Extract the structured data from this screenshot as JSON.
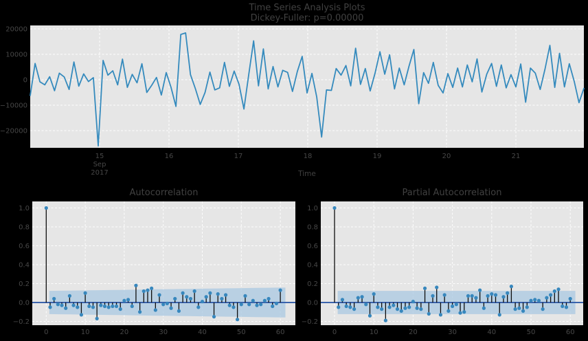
{
  "figure": {
    "title_line1": "Time Series Analysis Plots",
    "title_line2": "Dickey-Fuller: p=0.00000",
    "background": "#000000",
    "axes_bg": "#e6e6e6",
    "grid_color": "#ffffff",
    "text_color": "#474747",
    "line_color": "#348abd",
    "marker_color": "#3787bd",
    "stem_color": "#0d0d0d",
    "zero_line_color": "#3a63ac",
    "band_color": "#aecbe2"
  },
  "chart_data": [
    {
      "name": "time-series",
      "type": "line",
      "xlabel": "Time",
      "x_unit": "day of Sep 2017",
      "xlim_days": [
        14.0,
        21.98
      ],
      "ylim": [
        -27000,
        21500
      ],
      "grid": "on",
      "y_ticks": {
        "values": [
          20000,
          10000,
          0,
          -10000,
          -20000
        ],
        "labels": [
          "20000",
          "10000",
          "0",
          "−10000",
          "−20000"
        ]
      },
      "x_ticks": [
        {
          "day": 15,
          "label": "15",
          "sublines": [
            "Sep",
            "2017"
          ]
        },
        {
          "day": 16,
          "label": "16",
          "sublines": []
        },
        {
          "day": 17,
          "label": "17",
          "sublines": []
        },
        {
          "day": 18,
          "label": "18",
          "sublines": []
        },
        {
          "day": 19,
          "label": "19",
          "sublines": []
        },
        {
          "day": 20,
          "label": "20",
          "sublines": []
        },
        {
          "day": 21,
          "label": "21",
          "sublines": []
        }
      ],
      "series_days_start": 14.03,
      "series_days_end": 21.93,
      "values": [
        -6200,
        6400,
        -800,
        -2000,
        1200,
        -4300,
        2600,
        1100,
        -3800,
        7000,
        -2500,
        2300,
        -700,
        800,
        -26000,
        7600,
        1800,
        3500,
        -2000,
        8100,
        -3000,
        2100,
        -1200,
        6300,
        -5000,
        -2200,
        900,
        -6000,
        2800,
        -3000,
        -10500,
        17800,
        18400,
        2000,
        -3500,
        -9700,
        -5000,
        3000,
        -4000,
        -3200,
        6800,
        -2600,
        3400,
        -1800,
        -11500,
        2200,
        15300,
        -2400,
        12100,
        -3600,
        5200,
        -2800,
        3700,
        2900,
        -4600,
        3300,
        9200,
        -5200,
        2500,
        -6800,
        -22500,
        -4000,
        -4200,
        4400,
        1800,
        5600,
        -2400,
        12400,
        -1800,
        4400,
        -4400,
        2600,
        11000,
        2200,
        9800,
        -3600,
        4600,
        -2000,
        5400,
        11900,
        -9400,
        2800,
        -1400,
        6800,
        -2200,
        -5200,
        2400,
        -3000,
        4600,
        -2800,
        5800,
        -800,
        8200,
        -4800,
        2200,
        6400,
        -2600,
        5800,
        -3200,
        2000,
        -2800,
        6200,
        -8800,
        4600,
        2600,
        -3800,
        4200,
        13500,
        -3000,
        10400,
        -2800,
        6300,
        -600,
        -9000,
        -3400
      ]
    },
    {
      "name": "acf",
      "type": "stem",
      "title": "Autocorrelation",
      "xlim": [
        -3.6,
        63.8
      ],
      "ylim": [
        -0.24,
        1.065
      ],
      "grid": "on",
      "y_ticks": {
        "values": [
          1.0,
          0.8,
          0.6,
          0.4,
          0.2,
          0.0,
          -0.2
        ],
        "labels": [
          "1.0",
          "0.8",
          "0.6",
          "0.4",
          "0.2",
          "0.0",
          "−0.2"
        ]
      },
      "x_ticks": [
        0,
        10,
        20,
        30,
        40,
        50,
        60
      ],
      "conf_band": {
        "start_halfwidth": 0.123,
        "end_halfwidth": 0.158
      },
      "lags": "0-60",
      "values": [
        1.0,
        -0.05,
        0.04,
        -0.02,
        -0.03,
        -0.06,
        0.07,
        -0.03,
        -0.05,
        -0.13,
        0.1,
        -0.04,
        -0.05,
        -0.17,
        -0.03,
        -0.04,
        -0.05,
        -0.04,
        -0.04,
        -0.07,
        0.02,
        0.03,
        -0.04,
        0.18,
        -0.1,
        0.12,
        0.13,
        0.15,
        -0.08,
        0.08,
        -0.02,
        -0.01,
        -0.06,
        0.04,
        -0.09,
        0.1,
        0.06,
        0.04,
        0.12,
        -0.05,
        0.01,
        0.06,
        0.1,
        -0.15,
        0.09,
        0.04,
        0.08,
        -0.03,
        -0.05,
        -0.18,
        -0.02,
        0.07,
        -0.02,
        0.02,
        -0.03,
        -0.02,
        0.02,
        0.04,
        -0.04,
        -0.01,
        0.13
      ]
    },
    {
      "name": "pacf",
      "type": "stem",
      "title": "Partial Autocorrelation",
      "xlim": [
        -3.6,
        63.8
      ],
      "ylim": [
        -0.24,
        1.065
      ],
      "grid": "on",
      "y_ticks": {
        "values": [
          1.0,
          0.8,
          0.6,
          0.4,
          0.2,
          0.0,
          -0.2
        ],
        "labels": [
          "1.0",
          "0.8",
          "0.6",
          "0.4",
          "0.2",
          "0.0",
          "−0.2"
        ]
      },
      "x_ticks": [
        0,
        10,
        20,
        30,
        40,
        50,
        60
      ],
      "conf_band": {
        "start_halfwidth": 0.123,
        "end_halfwidth": 0.123
      },
      "lags": "0-60",
      "values": [
        1.0,
        -0.05,
        0.03,
        -0.04,
        -0.05,
        -0.07,
        0.05,
        0.06,
        -0.02,
        -0.14,
        0.09,
        -0.05,
        -0.07,
        -0.19,
        -0.05,
        -0.03,
        -0.07,
        -0.09,
        -0.06,
        -0.05,
        0.01,
        -0.06,
        -0.07,
        0.15,
        -0.12,
        0.07,
        0.16,
        -0.13,
        0.08,
        -0.09,
        -0.04,
        -0.02,
        -0.11,
        -0.1,
        0.07,
        0.07,
        0.05,
        0.13,
        -0.06,
        0.07,
        0.09,
        0.08,
        -0.13,
        0.06,
        0.1,
        0.17,
        -0.07,
        -0.06,
        -0.09,
        -0.05,
        0.02,
        0.03,
        0.02,
        -0.07,
        0.05,
        0.08,
        0.12,
        0.14,
        -0.04,
        -0.05,
        0.04
      ]
    }
  ]
}
